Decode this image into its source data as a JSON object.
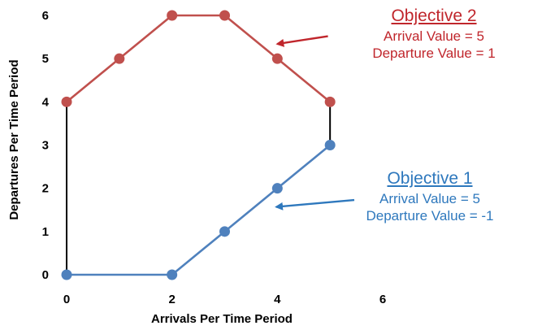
{
  "chart_data": {
    "type": "line",
    "xlabel": "Arrivals Per Time Period",
    "ylabel": "Departures Per Time Period",
    "xlim": [
      0,
      6
    ],
    "ylim": [
      0,
      6
    ],
    "x_ticks": [
      0,
      2,
      4,
      6
    ],
    "y_ticks": [
      0,
      1,
      2,
      3,
      4,
      5,
      6
    ],
    "grid": false,
    "series": [
      {
        "color": "#c0504d",
        "points": [
          [
            0,
            4
          ],
          [
            1,
            5
          ],
          [
            2,
            6
          ],
          [
            3,
            6
          ],
          [
            4,
            5
          ],
          [
            5,
            4
          ]
        ]
      },
      {
        "color": "#4f81bd",
        "points": [
          [
            0,
            0
          ],
          [
            2,
            0
          ],
          [
            3,
            1
          ],
          [
            4,
            2
          ],
          [
            5,
            3
          ]
        ]
      }
    ],
    "connectors": [
      {
        "color": "#000000",
        "points": [
          [
            0,
            0
          ],
          [
            0,
            4
          ]
        ]
      },
      {
        "color": "#000000",
        "points": [
          [
            5,
            3
          ],
          [
            5,
            4
          ]
        ]
      }
    ],
    "annotations": [
      {
        "heading": "Objective 2",
        "lines": [
          "Arrival Value = 5",
          "Departure Value = 1"
        ],
        "color": "#c0262c",
        "arrow_from": [
          4.96,
          5.52
        ],
        "arrow_to": [
          4.0,
          5.34
        ]
      },
      {
        "heading": "Objective 1",
        "lines": [
          "Arrival Value = 5",
          "Departure Value = -1"
        ],
        "color": "#2e78bd",
        "arrow_from": [
          5.46,
          1.73
        ],
        "arrow_to": [
          3.98,
          1.57
        ]
      }
    ]
  }
}
